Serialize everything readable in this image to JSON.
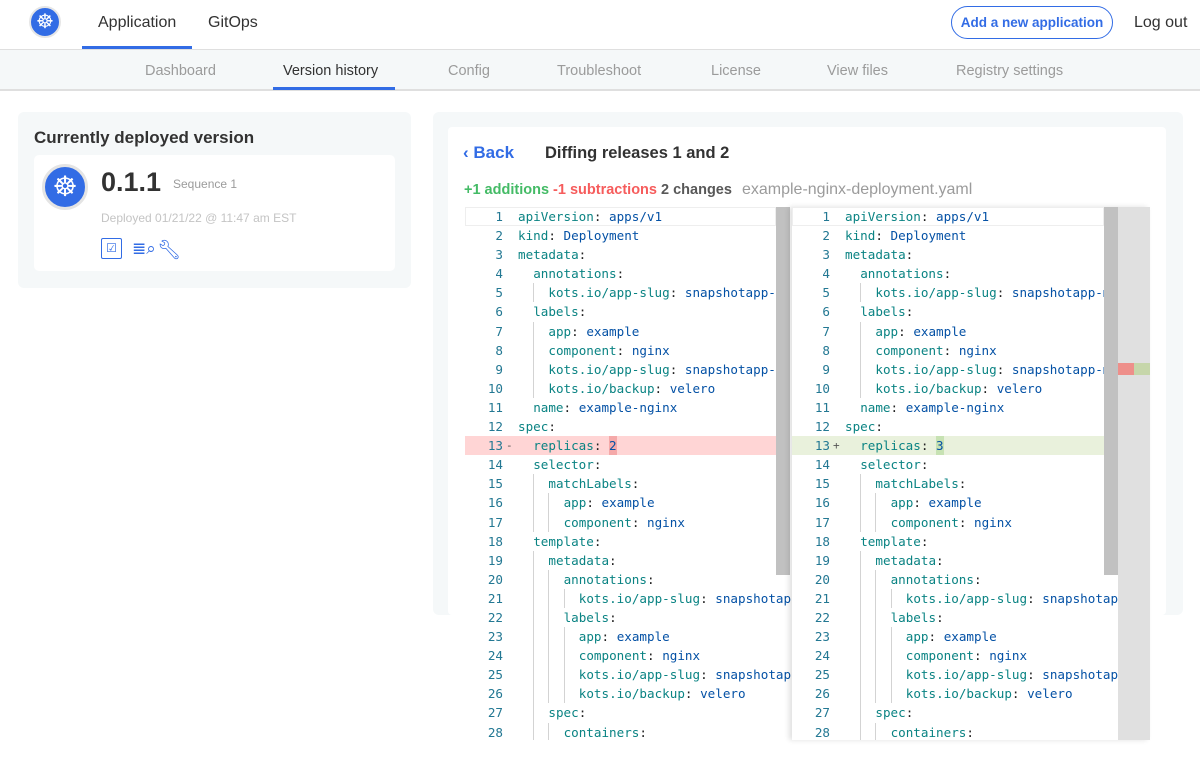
{
  "nav": {
    "tabs": [
      {
        "label": "Application",
        "active": true
      },
      {
        "label": "GitOps"
      }
    ],
    "add_button": "Add a new application",
    "logout": "Log out",
    "logo_icon": "kubernetes-helm-icon"
  },
  "subnav": [
    "Dashboard",
    "Version history",
    "Config",
    "Troubleshoot",
    "License",
    "View files",
    "Registry settings"
  ],
  "subnav_active": "Version history",
  "current": {
    "title": "Currently deployed version",
    "version": "0.1.1",
    "sequence": "Sequence 1",
    "deployed": "Deployed 01/21/22 @ 11:47 am EST",
    "icons": [
      "checklist-icon",
      "view-logs-icon",
      "troubleshoot-wrench-icon"
    ]
  },
  "diff": {
    "back": "Back",
    "title": "Diffing releases 1 and 2",
    "additions": "+1 additions",
    "subtractions": "-1 subtractions",
    "changes": "2 changes",
    "file": "example-nginx-deployment.yaml",
    "colors": {
      "accent": "#326ce5",
      "add": "#44bb66",
      "sub": "#f65c5c"
    },
    "lines": [
      [
        0,
        "apiVersion",
        "apps/v1"
      ],
      [
        0,
        "kind",
        "Deployment"
      ],
      [
        0,
        "metadata",
        ""
      ],
      [
        1,
        "annotations",
        ""
      ],
      [
        2,
        "kots.io/app-slug",
        "snapshotapp-mu"
      ],
      [
        1,
        "labels",
        ""
      ],
      [
        2,
        "app",
        "example"
      ],
      [
        2,
        "component",
        "nginx"
      ],
      [
        2,
        "kots.io/app-slug",
        "snapshotapp-mu"
      ],
      [
        2,
        "kots.io/backup",
        "velero"
      ],
      [
        1,
        "name",
        "example-nginx"
      ],
      [
        0,
        "spec",
        ""
      ],
      [
        1,
        "replicas",
        "CHANGED"
      ],
      [
        1,
        "selector",
        ""
      ],
      [
        2,
        "matchLabels",
        ""
      ],
      [
        3,
        "app",
        "example"
      ],
      [
        3,
        "component",
        "nginx"
      ],
      [
        1,
        "template",
        ""
      ],
      [
        2,
        "metadata",
        ""
      ],
      [
        3,
        "annotations",
        ""
      ],
      [
        4,
        "kots.io/app-slug",
        "snapshotap"
      ],
      [
        3,
        "labels",
        ""
      ],
      [
        4,
        "app",
        "example"
      ],
      [
        4,
        "component",
        "nginx"
      ],
      [
        4,
        "kots.io/app-slug",
        "snapshotap"
      ],
      [
        4,
        "kots.io/backup",
        "velero"
      ],
      [
        2,
        "spec",
        ""
      ],
      [
        3,
        "containers",
        ""
      ]
    ],
    "changed_line": 13,
    "old_value": "2",
    "new_value": "3",
    "del_marker": "-",
    "ins_marker": "+"
  }
}
